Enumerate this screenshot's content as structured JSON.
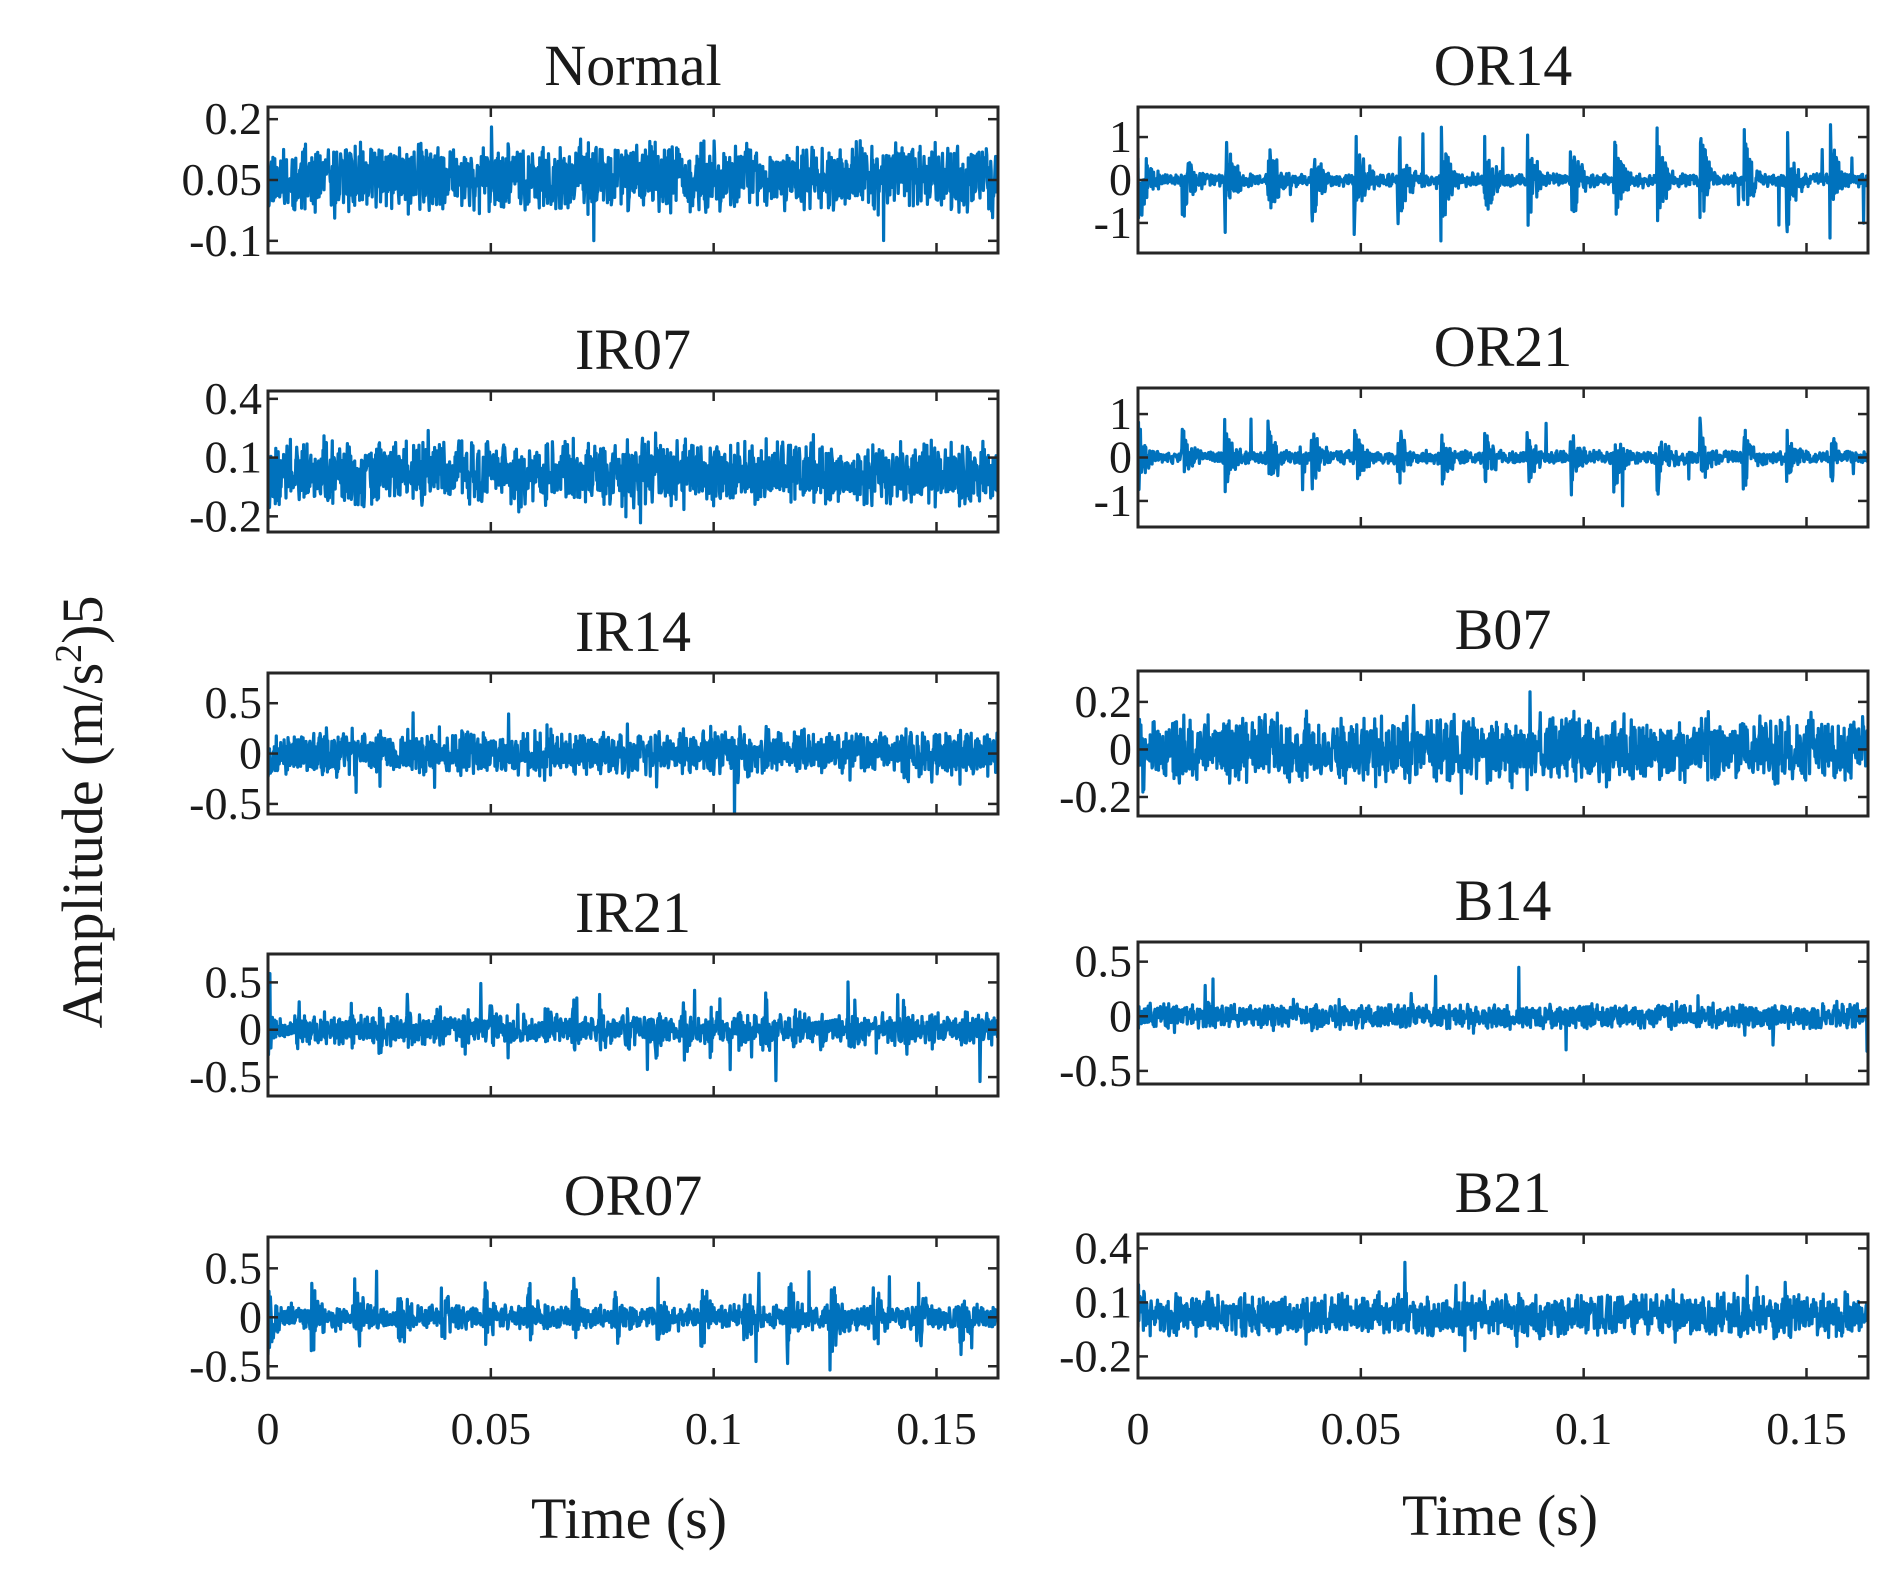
{
  "chart_data": {
    "type": "line",
    "ylabel": "Amplitude (m/s",
    "ylabel_exponent": "2",
    "ylabel_suffix": ")5",
    "xlabel": "Time (s)",
    "xlim": [
      0,
      0.1638
    ],
    "xticks": [
      0,
      0.05,
      0.1,
      0.15
    ],
    "xtick_labels": [
      "0",
      "0.05",
      "0.1",
      "0.15"
    ],
    "line_color": "#0072BD",
    "panels": [
      {
        "id": "normal",
        "title": "Normal",
        "column": "left",
        "row": 0,
        "ylim": [
          -0.13,
          0.23
        ],
        "yticks": [
          -0.1,
          0.05,
          0.2
        ],
        "ytick_labels": [
          "-0.1",
          "0.05",
          "0.2"
        ],
        "signal": {
          "base": 0.055,
          "noise": 0.07,
          "fault_period": 0,
          "fault_amp": 0,
          "seed": 11
        }
      },
      {
        "id": "ir07",
        "title": "IR07",
        "column": "left",
        "row": 1,
        "ylim": [
          -0.28,
          0.44
        ],
        "yticks": [
          -0.2,
          0.1,
          0.4
        ],
        "ytick_labels": [
          "-0.2",
          "0.1",
          "0.4"
        ],
        "signal": {
          "base": 0.02,
          "noise": 0.13,
          "fault_period": 0.0062,
          "fault_amp": 0.12,
          "seed": 23
        }
      },
      {
        "id": "ir14",
        "title": "IR14",
        "column": "left",
        "row": 2,
        "ylim": [
          -0.6,
          0.8
        ],
        "yticks": [
          -0.5,
          0,
          0.5
        ],
        "ytick_labels": [
          "-0.5",
          "0",
          "0.5"
        ],
        "signal": {
          "base": 0.0,
          "noise": 0.17,
          "fault_period": 0.0062,
          "fault_amp": 0.2,
          "seed": 37
        }
      },
      {
        "id": "ir21",
        "title": "IR21",
        "column": "left",
        "row": 3,
        "ylim": [
          -0.7,
          0.8
        ],
        "yticks": [
          -0.5,
          0,
          0.5
        ],
        "ytick_labels": [
          "-0.5",
          "0",
          "0.5"
        ],
        "signal": {
          "base": 0.0,
          "noise": 0.12,
          "fault_period": 0.0062,
          "fault_amp": 0.35,
          "seed": 41
        }
      },
      {
        "id": "or07",
        "title": "OR07",
        "column": "left",
        "row": 4,
        "ylim": [
          -0.62,
          0.82
        ],
        "yticks": [
          -0.5,
          0,
          0.5
        ],
        "ytick_labels": [
          "-0.5",
          "0",
          "0.5"
        ],
        "signal": {
          "base": 0.0,
          "noise": 0.1,
          "fault_period": 0.0097,
          "fault_amp": 0.45,
          "seed": 53
        }
      },
      {
        "id": "or14",
        "title": "OR14",
        "column": "right",
        "row": 0,
        "ylim": [
          -1.7,
          1.7
        ],
        "yticks": [
          -1,
          0,
          1
        ],
        "ytick_labels": [
          "-1",
          "0",
          "1"
        ],
        "signal": {
          "base": 0.0,
          "noise": 0.12,
          "fault_period": 0.0097,
          "fault_amp": 1.45,
          "seed": 67
        }
      },
      {
        "id": "or21",
        "title": "OR21",
        "column": "right",
        "row": 1,
        "ylim": [
          -1.6,
          1.6
        ],
        "yticks": [
          -1,
          0,
          1
        ],
        "ytick_labels": [
          "-1",
          "0",
          "1"
        ],
        "signal": {
          "base": 0.0,
          "noise": 0.12,
          "fault_period": 0.0097,
          "fault_amp": 0.9,
          "seed": 71
        }
      },
      {
        "id": "b07",
        "title": "B07",
        "column": "right",
        "row": 2,
        "ylim": [
          -0.28,
          0.33
        ],
        "yticks": [
          -0.2,
          0,
          0.2
        ],
        "ytick_labels": [
          "-0.2",
          "0",
          "0.2"
        ],
        "signal": {
          "base": 0.0,
          "noise": 0.11,
          "fault_period": 0.0075,
          "fault_amp": 0.1,
          "seed": 83
        }
      },
      {
        "id": "b14",
        "title": "B14",
        "column": "right",
        "row": 3,
        "ylim": [
          -0.62,
          0.68
        ],
        "yticks": [
          -0.5,
          0,
          0.5
        ],
        "ytick_labels": [
          "-0.5",
          "0",
          "0.5"
        ],
        "signal": {
          "base": 0.0,
          "noise": 0.09,
          "fault_period": 0.0075,
          "fault_amp": 0.08,
          "seed": 97
        }
      },
      {
        "id": "b21",
        "title": "B21",
        "column": "right",
        "row": 4,
        "ylim": [
          -0.32,
          0.48
        ],
        "yticks": [
          -0.2,
          0.1,
          0.4
        ],
        "ytick_labels": [
          "-0.2",
          "0.1",
          "0.4"
        ],
        "signal": {
          "base": 0.03,
          "noise": 0.09,
          "fault_period": 0.0075,
          "fault_amp": 0.08,
          "seed": 103
        }
      }
    ]
  }
}
